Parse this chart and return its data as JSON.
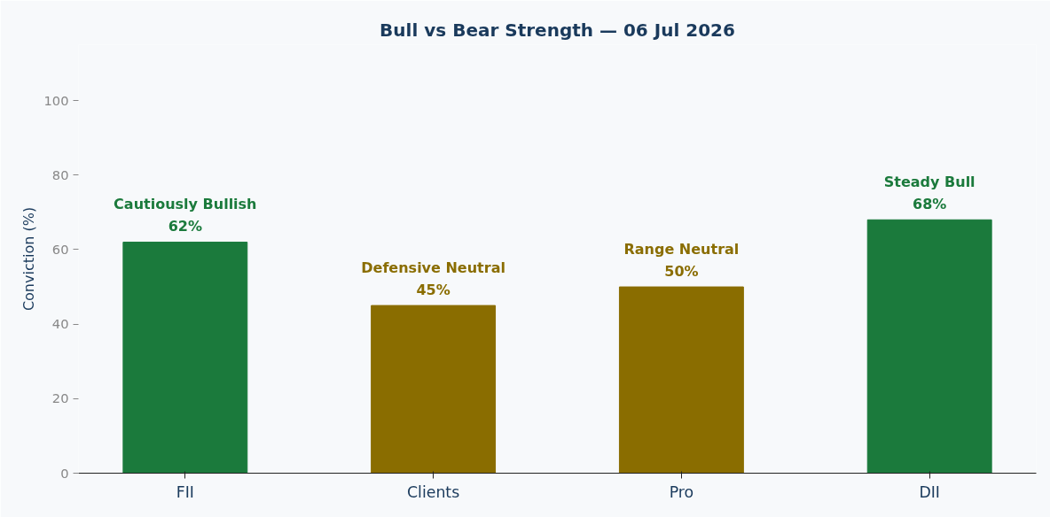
{
  "chart_data": {
    "type": "bar",
    "title": "Bull vs Bear Strength — 06 Jul 2026",
    "ylabel": "Conviction (%)",
    "categories": [
      "FII",
      "Clients",
      "Pro",
      "DII"
    ],
    "values": [
      62,
      45,
      50,
      68
    ],
    "colors": [
      "#1b7a3c",
      "#8a6d00",
      "#8a6d00",
      "#1b7a3c"
    ],
    "value_labels": [
      "Cautiously Bullish\n62%",
      "Defensive Neutral\n45%",
      "Range Neutral\n50%",
      "Steady Bull\n68%"
    ],
    "ylim": [
      0,
      115
    ],
    "yticks": [
      0,
      20,
      40,
      60,
      80,
      100
    ],
    "grid": false
  }
}
